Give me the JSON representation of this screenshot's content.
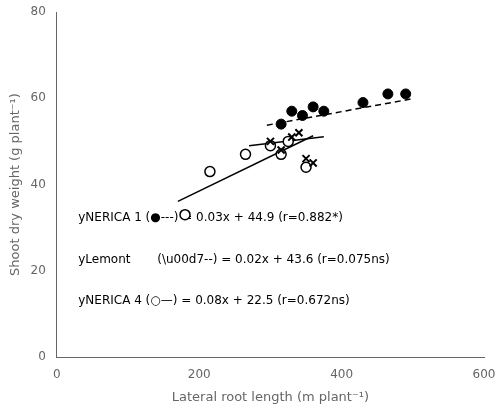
{
  "chart_data": {
    "type": "scatter",
    "xlabel": "Lateral root length (m plant⁻¹)",
    "ylabel": "Shoot dry weight (g plant⁻¹)",
    "xlim": [
      0,
      600
    ],
    "ylim": [
      0,
      80
    ],
    "xticks": [
      0,
      200,
      400,
      600
    ],
    "yticks": [
      0,
      20,
      40,
      60,
      80
    ],
    "grid": false,
    "annotations": [
      "yNERICA 1 (●---) = 0.03x + 44.9 (r=0.882*)",
      "yLemont       (\\u00d7--) = 0.02x + 43.6 (r=0.075ns)",
      "yNERICA 4 (○—) = 0.08x + 22.5 (r=0.672ns)"
    ],
    "series": [
      {
        "type": "line",
        "line_style": "dashed",
        "color": "black",
        "x": [
          295,
          500
        ],
        "values": [
          53.75,
          59.9
        ]
      },
      {
        "type": "line",
        "line_style": "solid",
        "color": "black",
        "x": [
          270,
          375
        ],
        "values": [
          49.0,
          51.1
        ]
      },
      {
        "type": "line",
        "line_style": "solid",
        "color": "black",
        "x": [
          170,
          360
        ],
        "values": [
          36.1,
          51.3
        ]
      },
      {
        "type": "scatter",
        "marker": "open circle",
        "color": "black",
        "x": [
          180,
          215,
          265,
          300,
          315,
          325,
          350
        ],
        "values": [
          33,
          43,
          47,
          49,
          47,
          50,
          44
        ]
      },
      {
        "type": "scatter",
        "marker": "x",
        "color": "black",
        "x": [
          300,
          315,
          330,
          340,
          350,
          360
        ],
        "values": [
          50,
          48,
          51,
          52,
          46,
          45
        ]
      },
      {
        "type": "scatter",
        "marker": "circle",
        "color": "black",
        "x": [
          315,
          330,
          345,
          360,
          375,
          430,
          465,
          490
        ],
        "values": [
          54,
          57,
          56,
          58,
          57,
          59,
          61,
          61
        ]
      }
    ]
  }
}
